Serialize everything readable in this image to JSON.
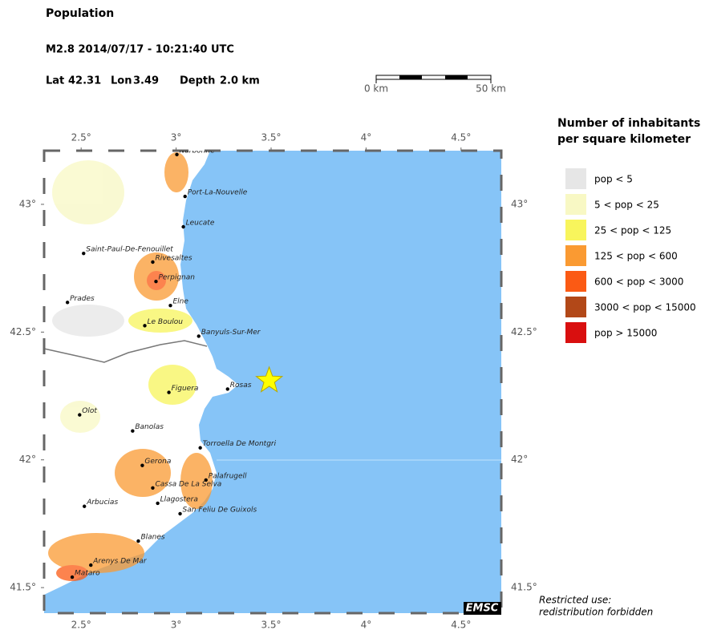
{
  "header": {
    "title": "Population",
    "event": "M2.8  2014/07/17 - 10:21:40 UTC",
    "lat_label": "Lat",
    "lat": 42.31,
    "lon_label": "Lon",
    "lon": 3.49,
    "depth_label": "Depth",
    "depth": "2.0 km"
  },
  "scale": {
    "start": "0 km",
    "end": "50 km"
  },
  "map": {
    "xlim": [
      2.305,
      4.712
    ],
    "ylim": [
      41.4,
      43.21
    ],
    "xticks": [
      {
        "value": 2.5,
        "label": "2.5°"
      },
      {
        "value": 3,
        "label": "3°"
      },
      {
        "value": 3.5,
        "label": "3.5°"
      },
      {
        "value": 4,
        "label": "4°"
      },
      {
        "value": 4.5,
        "label": "4.5°"
      }
    ],
    "yticks": [
      {
        "value": 43,
        "label": "43°"
      },
      {
        "value": 42.5,
        "label": "42.5°"
      },
      {
        "value": 42,
        "label": "42°"
      },
      {
        "value": 41.5,
        "label": "41.5°"
      }
    ],
    "cities": [
      {
        "name": "Narbonne",
        "lon": 3.004,
        "lat": 43.195
      },
      {
        "name": "Port-La-Nouvelle",
        "lon": 3.047,
        "lat": 43.031
      },
      {
        "name": "Leucate",
        "lon": 3.038,
        "lat": 42.912
      },
      {
        "name": "Saint-Paul-De-Fenouillet",
        "lon": 2.513,
        "lat": 42.808
      },
      {
        "name": "Rivesaltes",
        "lon": 2.877,
        "lat": 42.774
      },
      {
        "name": "Perpignan",
        "lon": 2.894,
        "lat": 42.698
      },
      {
        "name": "Prades",
        "lon": 2.428,
        "lat": 42.616
      },
      {
        "name": "Elne",
        "lon": 2.97,
        "lat": 42.604
      },
      {
        "name": "Le Boulou",
        "lon": 2.835,
        "lat": 42.525
      },
      {
        "name": "Banyuls-Sur-Mer",
        "lon": 3.119,
        "lat": 42.484
      },
      {
        "name": "Rosas",
        "lon": 3.271,
        "lat": 42.277
      },
      {
        "name": "Figuera",
        "lon": 2.962,
        "lat": 42.264
      },
      {
        "name": "Olot",
        "lon": 2.492,
        "lat": 42.176
      },
      {
        "name": "Banolas",
        "lon": 2.771,
        "lat": 42.113
      },
      {
        "name": "Torroella De Montgri",
        "lon": 3.127,
        "lat": 42.047
      },
      {
        "name": "Gerona",
        "lon": 2.822,
        "lat": 41.978
      },
      {
        "name": "Palafrugell",
        "lon": 3.157,
        "lat": 41.921
      },
      {
        "name": "Cassa De La Selva",
        "lon": 2.877,
        "lat": 41.89
      },
      {
        "name": "Arbucias",
        "lon": 2.517,
        "lat": 41.818
      },
      {
        "name": "Llagostera",
        "lon": 2.903,
        "lat": 41.83
      },
      {
        "name": "San Feliu De Guixols",
        "lon": 3.021,
        "lat": 41.789
      },
      {
        "name": "Blanes",
        "lon": 2.801,
        "lat": 41.682
      },
      {
        "name": "Arenys De Mar",
        "lon": 2.551,
        "lat": 41.588
      },
      {
        "name": "Mataro",
        "lon": 2.453,
        "lat": 41.541
      }
    ],
    "badge": "EMSC"
  },
  "legend": {
    "title": [
      "Number of inhabitants",
      "per square kilometer"
    ],
    "items": [
      {
        "label": "pop < 5",
        "color": "#e6e6e6"
      },
      {
        "label": "5 < pop < 25",
        "color": "#f8f8c4"
      },
      {
        "label": "25 < pop < 125",
        "color": "#f8f55c"
      },
      {
        "label": "125 < pop < 600",
        "color": "#fa9a32"
      },
      {
        "label": "600 < pop < 3000",
        "color": "#fb5a14"
      },
      {
        "label": "3000 < pop < 15000",
        "color": "#b24818"
      },
      {
        "label": "pop > 15000",
        "color": "#d90f0f"
      }
    ]
  },
  "note": [
    "Restricted use:",
    "redistribution forbidden"
  ]
}
